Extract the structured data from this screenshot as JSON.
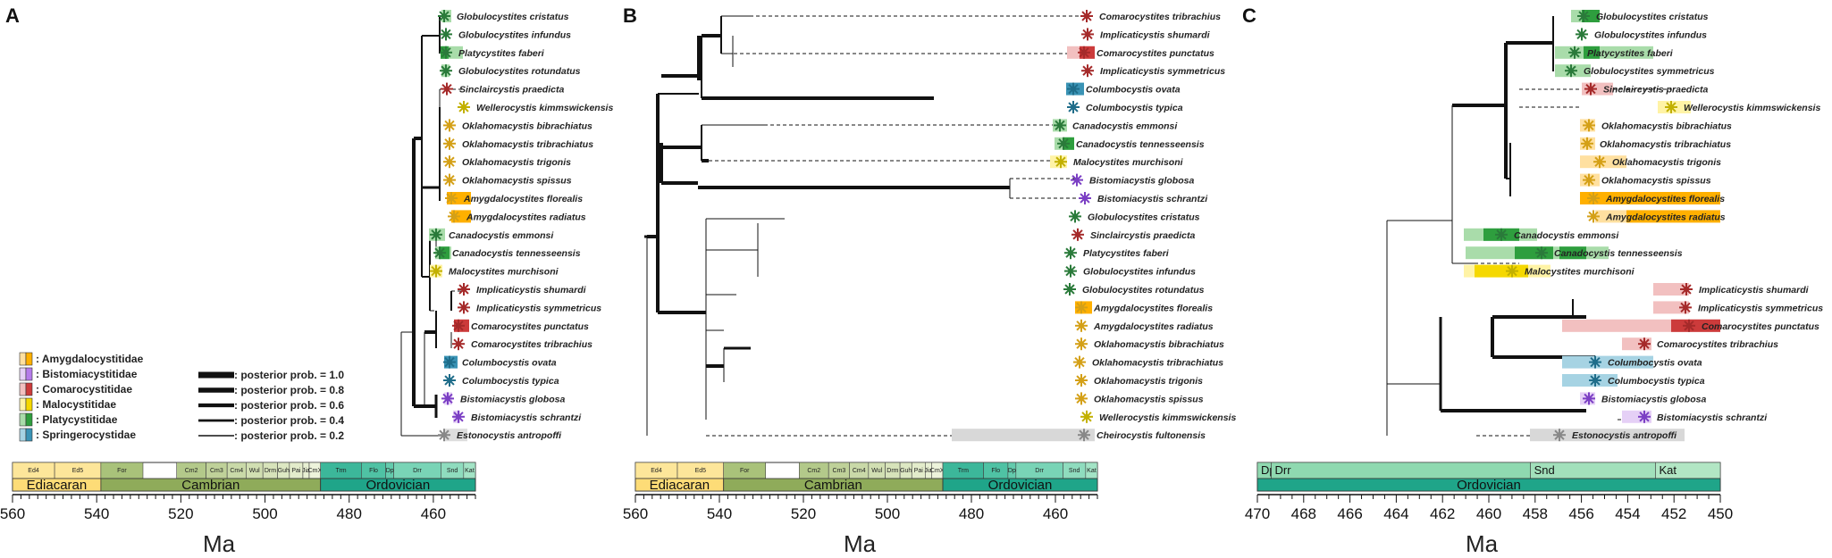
{
  "panels": {
    "A": {
      "letter": "A",
      "taxa": [
        {
          "name": "Globulocystites cristatus",
          "family": "Platycystitidae"
        },
        {
          "name": "Globulocystites infundus",
          "family": "Platycystitidae"
        },
        {
          "name": "Platycystites faberi",
          "family": "Platycystitidae"
        },
        {
          "name": "Globulocystites rotundatus",
          "family": "Platycystitidae"
        },
        {
          "name": "Sinclaircystis praedicta",
          "family": "Comarocystitidae"
        },
        {
          "name": "Wellerocystis kimmswickensis",
          "family": "Malocystitidae"
        },
        {
          "name": "Oklahomacystis bibrachiatus",
          "family": "Amygdalocystitidae"
        },
        {
          "name": "Oklahomacystis tribrachiatus",
          "family": "Amygdalocystitidae"
        },
        {
          "name": "Oklahomacystis trigonis",
          "family": "Amygdalocystitidae"
        },
        {
          "name": "Oklahomacystis spissus",
          "family": "Amygdalocystitidae"
        },
        {
          "name": "Amygdalocystites florealis",
          "family": "Amygdalocystitidae"
        },
        {
          "name": "Amygdalocystites radiatus",
          "family": "Amygdalocystitidae"
        },
        {
          "name": "Canadocystis emmonsi",
          "family": "Platycystitidae"
        },
        {
          "name": "Canadocystis tennesseensis",
          "family": "Platycystitidae"
        },
        {
          "name": "Malocystites murchisoni",
          "family": "Malocystitidae"
        },
        {
          "name": "Implicaticystis shumardi",
          "family": "Comarocystitidae"
        },
        {
          "name": "Implicaticystis symmetricus",
          "family": "Comarocystitidae"
        },
        {
          "name": "Comarocystites punctatus",
          "family": "Comarocystitidae"
        },
        {
          "name": "Comarocystites tribrachius",
          "family": "Comarocystitidae"
        },
        {
          "name": "Columbocystis ovata",
          "family": "Springerocystidae"
        },
        {
          "name": "Columbocystis typica",
          "family": "Springerocystidae"
        },
        {
          "name": "Bistomiacystis globosa",
          "family": "Bistomiacystitidae"
        },
        {
          "name": "Bistomiacystis schrantzi",
          "family": "Bistomiacystitidae"
        },
        {
          "name": "Estonocystis antropoffi",
          "family": "Outgroup"
        }
      ]
    },
    "B": {
      "letter": "B",
      "taxa": [
        {
          "name": "Comarocystites tribrachius",
          "family": "Comarocystitidae"
        },
        {
          "name": "Implicaticystis shumardi",
          "family": "Comarocystitidae"
        },
        {
          "name": "Comarocystites punctatus",
          "family": "Comarocystitidae"
        },
        {
          "name": "Implicaticystis symmetricus",
          "family": "Comarocystitidae"
        },
        {
          "name": "Columbocystis ovata",
          "family": "Springerocystidae"
        },
        {
          "name": "Columbocystis typica",
          "family": "Springerocystidae"
        },
        {
          "name": "Canadocystis emmonsi",
          "family": "Platycystitidae"
        },
        {
          "name": "Canadocystis tennesseensis",
          "family": "Platycystitidae"
        },
        {
          "name": "Malocystites murchisoni",
          "family": "Malocystitidae"
        },
        {
          "name": "Bistomiacystis globosa",
          "family": "Bistomiacystitidae"
        },
        {
          "name": "Bistomiacystis schrantzi",
          "family": "Bistomiacystitidae"
        },
        {
          "name": "Globulocystites cristatus",
          "family": "Platycystitidae"
        },
        {
          "name": "Sinclaircystis praedicta",
          "family": "Comarocystitidae"
        },
        {
          "name": "Platycystites faberi",
          "family": "Platycystitidae"
        },
        {
          "name": "Globulocystites infundus",
          "family": "Platycystitidae"
        },
        {
          "name": "Globulocystites rotundatus",
          "family": "Platycystitidae"
        },
        {
          "name": "Amygdalocystites florealis",
          "family": "Amygdalocystitidae"
        },
        {
          "name": "Amygdalocystites radiatus",
          "family": "Amygdalocystitidae"
        },
        {
          "name": "Oklahomacystis bibrachiatus",
          "family": "Amygdalocystitidae"
        },
        {
          "name": "Oklahomacystis tribrachiatus",
          "family": "Amygdalocystitidae"
        },
        {
          "name": "Oklahomacystis trigonis",
          "family": "Amygdalocystitidae"
        },
        {
          "name": "Oklahomacystis spissus",
          "family": "Amygdalocystitidae"
        },
        {
          "name": "Wellerocystis kimmswickensis",
          "family": "Malocystitidae"
        },
        {
          "name": "Cheirocystis fultonensis",
          "family": "Outgroup"
        }
      ]
    },
    "C": {
      "letter": "C",
      "taxa": [
        {
          "name": "Globulocystites cristatus",
          "family": "Platycystitidae"
        },
        {
          "name": "Globulocystites infundus",
          "family": "Platycystitidae"
        },
        {
          "name": "Platycystites faberi",
          "family": "Platycystitidae"
        },
        {
          "name": "Globulocystites symmetricus",
          "family": "Platycystitidae"
        },
        {
          "name": "Sinclaircystis praedicta",
          "family": "Comarocystitidae"
        },
        {
          "name": "Wellerocystis kimmswickensis",
          "family": "Malocystitidae"
        },
        {
          "name": "Oklahomacystis bibrachiatus",
          "family": "Amygdalocystitidae"
        },
        {
          "name": "Oklahomacystis tribrachiatus",
          "family": "Amygdalocystitidae"
        },
        {
          "name": "Oklahomacystis trigonis",
          "family": "Amygdalocystitidae"
        },
        {
          "name": "Oklahomacystis spissus",
          "family": "Amygdalocystitidae"
        },
        {
          "name": "Amygdalocystites florealis",
          "family": "Amygdalocystitidae"
        },
        {
          "name": "Amygdalocystites radiatus",
          "family": "Amygdalocystitidae"
        },
        {
          "name": "Canadocystis emmonsi",
          "family": "Platycystitidae"
        },
        {
          "name": "Canadocystis tennesseensis",
          "family": "Platycystitidae"
        },
        {
          "name": "Malocystites murchisoni",
          "family": "Malocystitidae"
        },
        {
          "name": "Implicaticystis shumardi",
          "family": "Comarocystitidae"
        },
        {
          "name": "Implicaticystis symmetricus",
          "family": "Comarocystitidae"
        },
        {
          "name": "Comarocystites punctatus",
          "family": "Comarocystitidae"
        },
        {
          "name": "Comarocystites tribrachius",
          "family": "Comarocystitidae"
        },
        {
          "name": "Columbocystis ovata",
          "family": "Springerocystidae"
        },
        {
          "name": "Columbocystis typica",
          "family": "Springerocystidae"
        },
        {
          "name": "Bistomiacystis globosa",
          "family": "Bistomiacystitidae"
        },
        {
          "name": "Bistomiacystis schrantzi",
          "family": "Bistomiacystitidae"
        },
        {
          "name": "Estonocystis antropoffi",
          "family": "Outgroup"
        }
      ]
    }
  },
  "legend": {
    "families": [
      {
        "label": ": Amygdalocystitidae",
        "key": "Amygdalocystitidae"
      },
      {
        "label": ": Bistomiacystitidae",
        "key": "Bistomiacystitidae"
      },
      {
        "label": ": Comarocystitidae",
        "key": "Comarocystitidae"
      },
      {
        "label": ": Malocystitidae",
        "key": "Malocystitidae"
      },
      {
        "label": ": Platycystitidae",
        "key": "Platycystitidae"
      },
      {
        "label": ": Springerocystidae",
        "key": "Springerocystidae"
      }
    ],
    "posterior": [
      {
        "label": ": posterior prob. = 1.0",
        "value": 1.0
      },
      {
        "label": ": posterior prob. = 0.8",
        "value": 0.8
      },
      {
        "label": ": posterior prob. = 0.6",
        "value": 0.6
      },
      {
        "label": ": posterior prob. = 0.4",
        "value": 0.4
      },
      {
        "label": ": posterior prob. = 0.2",
        "value": 0.2
      }
    ]
  },
  "family_colors": {
    "Amygdalocystitidae": {
      "dark": "#ffb000",
      "light": "#ffe0a0",
      "star": "#d4a017"
    },
    "Bistomiacystitidae": {
      "dark": "#b57bea",
      "light": "#e5d0f6",
      "star": "#7b3fc4"
    },
    "Comarocystitidae": {
      "dark": "#cc3b3b",
      "light": "#f2c0c0",
      "star": "#a52a2a"
    },
    "Malocystitidae": {
      "dark": "#f5d800",
      "light": "#fff3a6",
      "star": "#c2b000"
    },
    "Platycystitidae": {
      "dark": "#2e9e3e",
      "light": "#a9dcaa",
      "star": "#2a7a3a"
    },
    "Springerocystidae": {
      "dark": "#3a93b5",
      "light": "#a6d3e3",
      "star": "#1f6d8a"
    },
    "Outgroup": {
      "dark": "#aaaaaa",
      "light": "#dddddd",
      "star": "#888888"
    }
  },
  "axis": {
    "unit": "Ma",
    "ticks_AB": [
      560,
      540,
      520,
      500,
      480,
      460
    ],
    "ticks_C": [
      470,
      468,
      466,
      464,
      462,
      460,
      458,
      456,
      454,
      452,
      450
    ],
    "range_AB": [
      560,
      450
    ],
    "range_C": [
      470,
      450
    ]
  },
  "timescale_AB": {
    "periods": [
      {
        "label": "Ediacaran",
        "from": 560,
        "to": 539,
        "color": "#fddc77"
      },
      {
        "label": "Cambrian",
        "from": 539,
        "to": 486.8,
        "color": "#8fab5a"
      },
      {
        "label": "Ordovician",
        "from": 486.8,
        "to": 450,
        "color": "#1fa589"
      }
    ],
    "stages": [
      {
        "label": "Ed4",
        "from": 560,
        "to": 550,
        "color": "#fde69a"
      },
      {
        "label": "Ed5",
        "from": 550,
        "to": 539,
        "color": "#fde69a"
      },
      {
        "label": "For",
        "from": 539,
        "to": 529,
        "color": "#a9c27a"
      },
      {
        "label": "Cm2",
        "from": 521,
        "to": 514,
        "color": "#b3c98a"
      },
      {
        "label": "Cm3",
        "from": 514,
        "to": 509,
        "color": "#bfd199"
      },
      {
        "label": "Cm4",
        "from": 509,
        "to": 504.5,
        "color": "#c9d9a8"
      },
      {
        "label": "Wul",
        "from": 504.5,
        "to": 500.5,
        "color": "#d1dfb2"
      },
      {
        "label": "Drm",
        "from": 500.5,
        "to": 497,
        "color": "#d7e3ba"
      },
      {
        "label": "Guh",
        "from": 497,
        "to": 494.2,
        "color": "#dde8c3"
      },
      {
        "label": "Pai",
        "from": 494.2,
        "to": 491,
        "color": "#e3eccb"
      },
      {
        "label": "Jia",
        "from": 491,
        "to": 489.5,
        "color": "#e8f0d3"
      },
      {
        "label": "CmX",
        "from": 489.5,
        "to": 486.8,
        "color": "#edf3db"
      },
      {
        "label": "Trm",
        "from": 486.8,
        "to": 477.1,
        "color": "#3cb79a"
      },
      {
        "label": "Flo",
        "from": 477.1,
        "to": 471.3,
        "color": "#4fc2a4"
      },
      {
        "label": "Dp",
        "from": 471.3,
        "to": 469.4,
        "color": "#63cbad"
      },
      {
        "label": "Drr",
        "from": 469.4,
        "to": 458.2,
        "color": "#79d4b6"
      },
      {
        "label": "Snd",
        "from": 458.2,
        "to": 452.8,
        "color": "#8fdcbe"
      },
      {
        "label": "Kat",
        "from": 452.8,
        "to": 450,
        "color": "#a3e4c6"
      }
    ]
  },
  "timescale_C": {
    "periods": [
      {
        "label": "Ordovician",
        "from": 470,
        "to": 450,
        "color": "#1fa589"
      }
    ],
    "stages": [
      {
        "label": "Dp",
        "from": 470,
        "to": 469.4,
        "color": "#8fd9b0"
      },
      {
        "label": "Drr",
        "from": 469.4,
        "to": 458.2,
        "color": "#8fd9b0"
      },
      {
        "label": "Snd",
        "from": 458.2,
        "to": 452.8,
        "color": "#a2e0bb"
      },
      {
        "label": "Kat",
        "from": 452.8,
        "to": 450,
        "color": "#b2e6c4"
      }
    ]
  }
}
